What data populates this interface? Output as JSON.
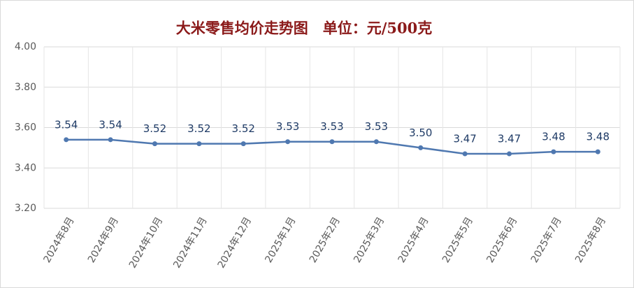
{
  "chart_data": {
    "type": "line",
    "title": "大米零售均价走势图　单位：元/500克",
    "categories": [
      "2024年8月",
      "2024年9月",
      "2024年10月",
      "2024年11月",
      "2024年12月",
      "2025年1月",
      "2025年2月",
      "2025年3月",
      "2025年4月",
      "2025年5月",
      "2025年6月",
      "2025年7月",
      "2025年8月"
    ],
    "series": [
      {
        "name": "大米零售均价",
        "color": "#4f78b0",
        "values": [
          3.54,
          3.54,
          3.52,
          3.52,
          3.52,
          3.53,
          3.53,
          3.53,
          3.5,
          3.47,
          3.47,
          3.48,
          3.48
        ],
        "value_labels": [
          "3.54",
          "3.54",
          "3.52",
          "3.52",
          "3.52",
          "3.53",
          "3.53",
          "3.53",
          "3.50",
          "3.47",
          "3.47",
          "3.48",
          "3.48"
        ]
      }
    ],
    "ylim": [
      3.2,
      4.0
    ],
    "yticks": [
      {
        "value": 3.2,
        "label": "3.20"
      },
      {
        "value": 3.4,
        "label": "3.40"
      },
      {
        "value": 3.6,
        "label": "3.60"
      },
      {
        "value": 3.8,
        "label": "3.80"
      },
      {
        "value": 4.0,
        "label": "4.00"
      }
    ],
    "grid": true
  }
}
